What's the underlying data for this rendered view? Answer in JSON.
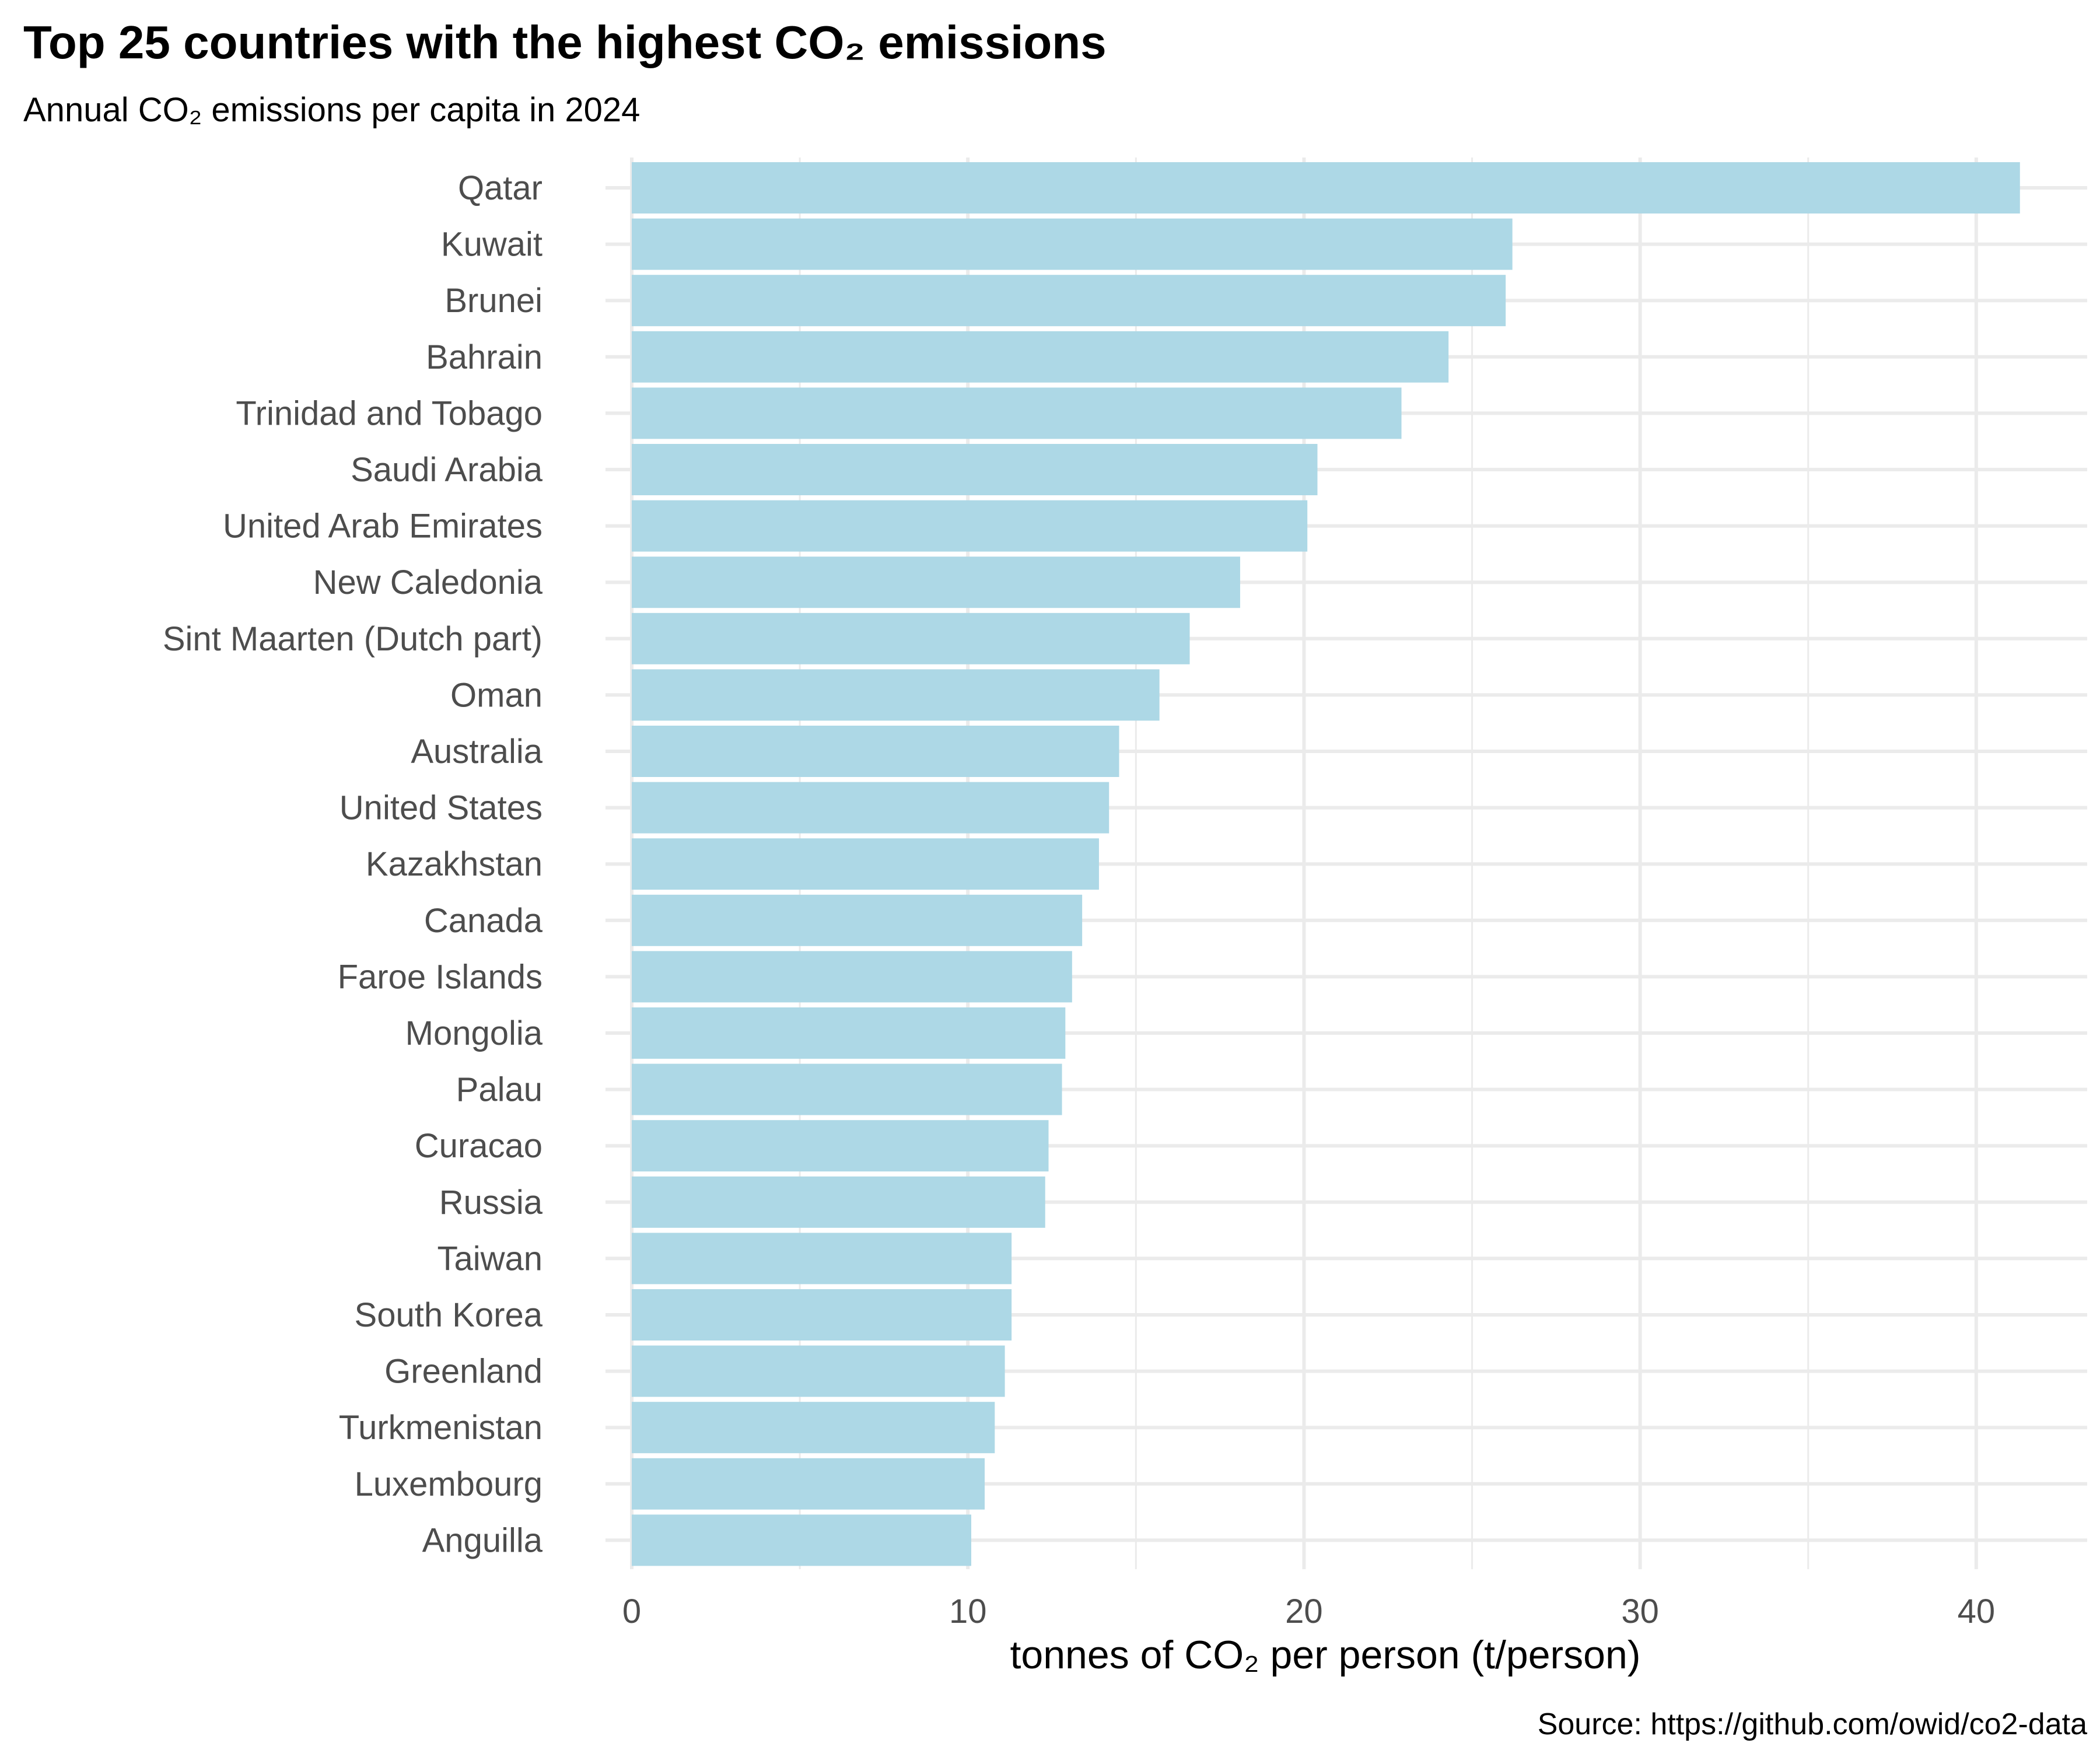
{
  "chart_data": {
    "type": "bar",
    "orientation": "horizontal",
    "title": "Top 25 countries with the highest CO₂ emissions",
    "subtitle": "Annual CO₂ emissions per capita in 2024",
    "xlabel": "tonnes of  CO₂ per person (t/person)",
    "ylabel": "",
    "caption": "Source: https://github.com/owid/co2-data",
    "xlim": [
      0,
      43.3
    ],
    "x_ticks": [
      0,
      10,
      20,
      30,
      40
    ],
    "x_minor_ticks": [
      5,
      15,
      25,
      35
    ],
    "grid": true,
    "legend": "none",
    "colors": {
      "bar": "#add8e6",
      "grid": "#ebebeb",
      "tick_text": "#4d4d4d",
      "text": "#000000"
    },
    "categories": [
      "Qatar",
      "Kuwait",
      "Brunei",
      "Bahrain",
      "Trinidad and Tobago",
      "Saudi Arabia",
      "United Arab Emirates",
      "New Caledonia",
      "Sint Maarten (Dutch part)",
      "Oman",
      "Australia",
      "United States",
      "Kazakhstan",
      "Canada",
      "Faroe Islands",
      "Mongolia",
      "Palau",
      "Curacao",
      "Russia",
      "Taiwan",
      "South Korea",
      "Greenland",
      "Turkmenistan",
      "Luxembourg",
      "Anguilla"
    ],
    "values": [
      41.3,
      26.2,
      26.0,
      24.3,
      22.9,
      20.4,
      20.1,
      18.1,
      16.6,
      15.7,
      14.5,
      14.2,
      13.9,
      13.4,
      13.1,
      12.9,
      12.8,
      12.4,
      12.3,
      11.3,
      11.3,
      11.1,
      10.8,
      10.5,
      10.1
    ]
  }
}
